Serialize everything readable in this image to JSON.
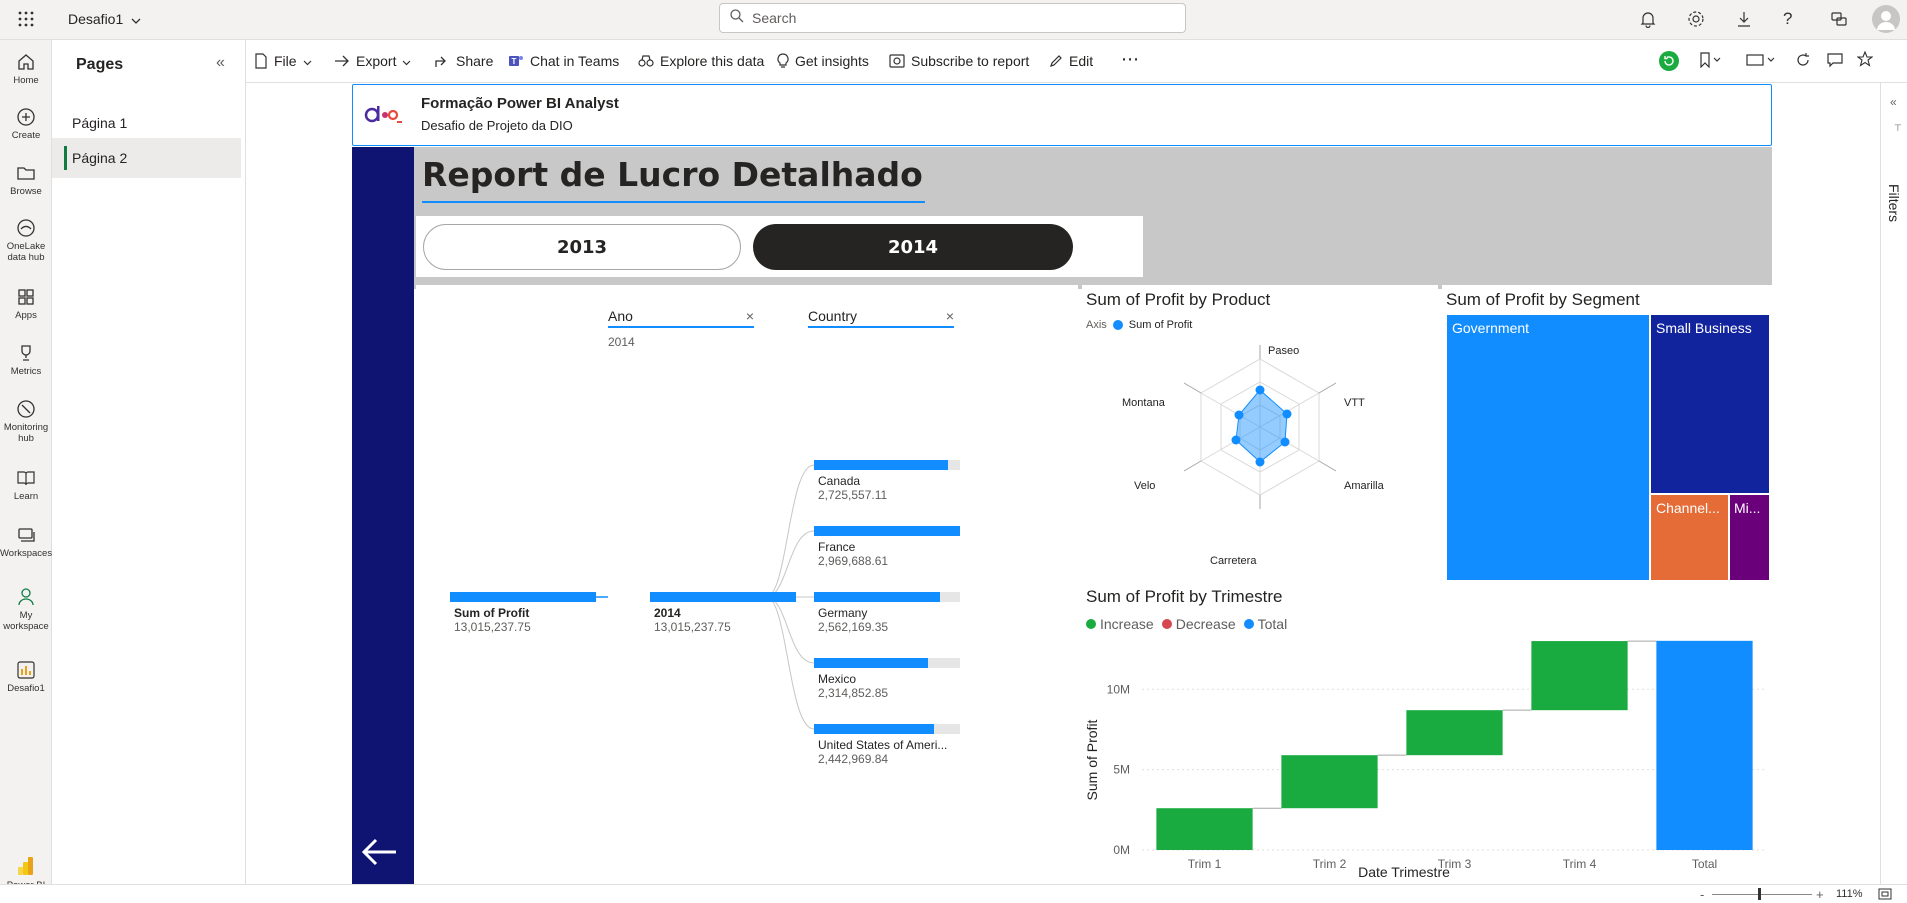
{
  "topbar": {
    "report_name": "Desafio1",
    "search_placeholder": "Search"
  },
  "left_rail": {
    "items": [
      {
        "label": "Home"
      },
      {
        "label": "Create"
      },
      {
        "label": "Browse"
      },
      {
        "label": "OneLake data hub"
      },
      {
        "label": "Apps"
      },
      {
        "label": "Metrics"
      },
      {
        "label": "Monitoring hub"
      },
      {
        "label": "Learn"
      },
      {
        "label": "Workspaces"
      },
      {
        "label": "My workspace"
      },
      {
        "label": "Desafio1"
      }
    ],
    "brand_label": "Power BI"
  },
  "pages_panel": {
    "title": "Pages",
    "pages": [
      {
        "label": "Página 1",
        "selected": false
      },
      {
        "label": "Página 2",
        "selected": true
      }
    ]
  },
  "actionbar": {
    "file": "File",
    "export": "Export",
    "share": "Share",
    "chat": "Chat in Teams",
    "explore": "Explore this data",
    "insights": "Get insights",
    "subscribe": "Subscribe to report",
    "edit": "Edit",
    "more": "⋯"
  },
  "report": {
    "header_title": "Formação Power BI Analyst",
    "header_subtitle": "Desafio de Projeto da DIO",
    "logo_text": "dio",
    "main_title": "Report de Lucro Detalhado",
    "year_buttons": [
      {
        "label": "2013",
        "selected": false
      },
      {
        "label": "2014",
        "selected": true
      }
    ],
    "colors": {
      "navy": "#0f1473",
      "blue": "#118dff",
      "darkblue": "#12239e",
      "orange": "#e66c37",
      "purple": "#6b007b",
      "green": "#1aab40",
      "red": "#d64550",
      "gray_band": "#c8c8c8"
    }
  },
  "decomp_tree": {
    "levels": [
      {
        "header": "Ano",
        "subtext": "2014"
      },
      {
        "header": "Country",
        "subtext": ""
      }
    ],
    "root": {
      "label": "Sum of Profit",
      "value": "13,015,237.75"
    },
    "year_node": {
      "label": "2014",
      "value": "13,015,237.75"
    },
    "countries": [
      {
        "label": "Canada",
        "value": "2,725,557.11",
        "fraction": 0.918
      },
      {
        "label": "France",
        "value": "2,969,688.61",
        "fraction": 1.0
      },
      {
        "label": "Germany",
        "value": "2,562,169.35",
        "fraction": 0.863
      },
      {
        "label": "Mexico",
        "value": "2,314,852.85",
        "fraction": 0.779
      },
      {
        "label": "United States of Ameri...",
        "value": "2,442,969.84",
        "fraction": 0.823
      }
    ]
  },
  "radar": {
    "title": "Sum of Profit by Product",
    "legend_axis": "Axis",
    "legend_series": "Sum of Profit",
    "axes": [
      "Paseo",
      "VTT",
      "Amarilla",
      "Carretera",
      "Velo",
      "Montana"
    ]
  },
  "treemap": {
    "title": "Sum of Profit by Segment",
    "segments": [
      {
        "label": "Government",
        "color": "#118dff"
      },
      {
        "label": "Small Business",
        "color": "#12239e"
      },
      {
        "label": "Channel...",
        "color": "#e66c37"
      },
      {
        "label": "Mi...",
        "color": "#6b007b"
      }
    ]
  },
  "chart_data": {
    "type": "waterfall",
    "title": "Sum of Profit by Trimestre",
    "xlabel": "Date Trimestre",
    "ylabel": "Sum of Profit",
    "legend": [
      "Increase",
      "Decrease",
      "Total"
    ],
    "categories": [
      "Trim 1",
      "Trim 2",
      "Trim 3",
      "Trim 4",
      "Total"
    ],
    "values": [
      2600000,
      3300000,
      2800000,
      4300000,
      13015237.75
    ],
    "kinds": [
      "increase",
      "increase",
      "increase",
      "increase",
      "total"
    ],
    "yticks": [
      "0M",
      "5M",
      "10M"
    ],
    "ylim": [
      0,
      14000000
    ],
    "colors": {
      "increase": "#1aab40",
      "decrease": "#d64550",
      "total": "#118dff"
    }
  },
  "statusbar": {
    "zoom": "111%",
    "minus": "-",
    "plus": "+"
  },
  "filters_pane": {
    "label": "Filters"
  }
}
